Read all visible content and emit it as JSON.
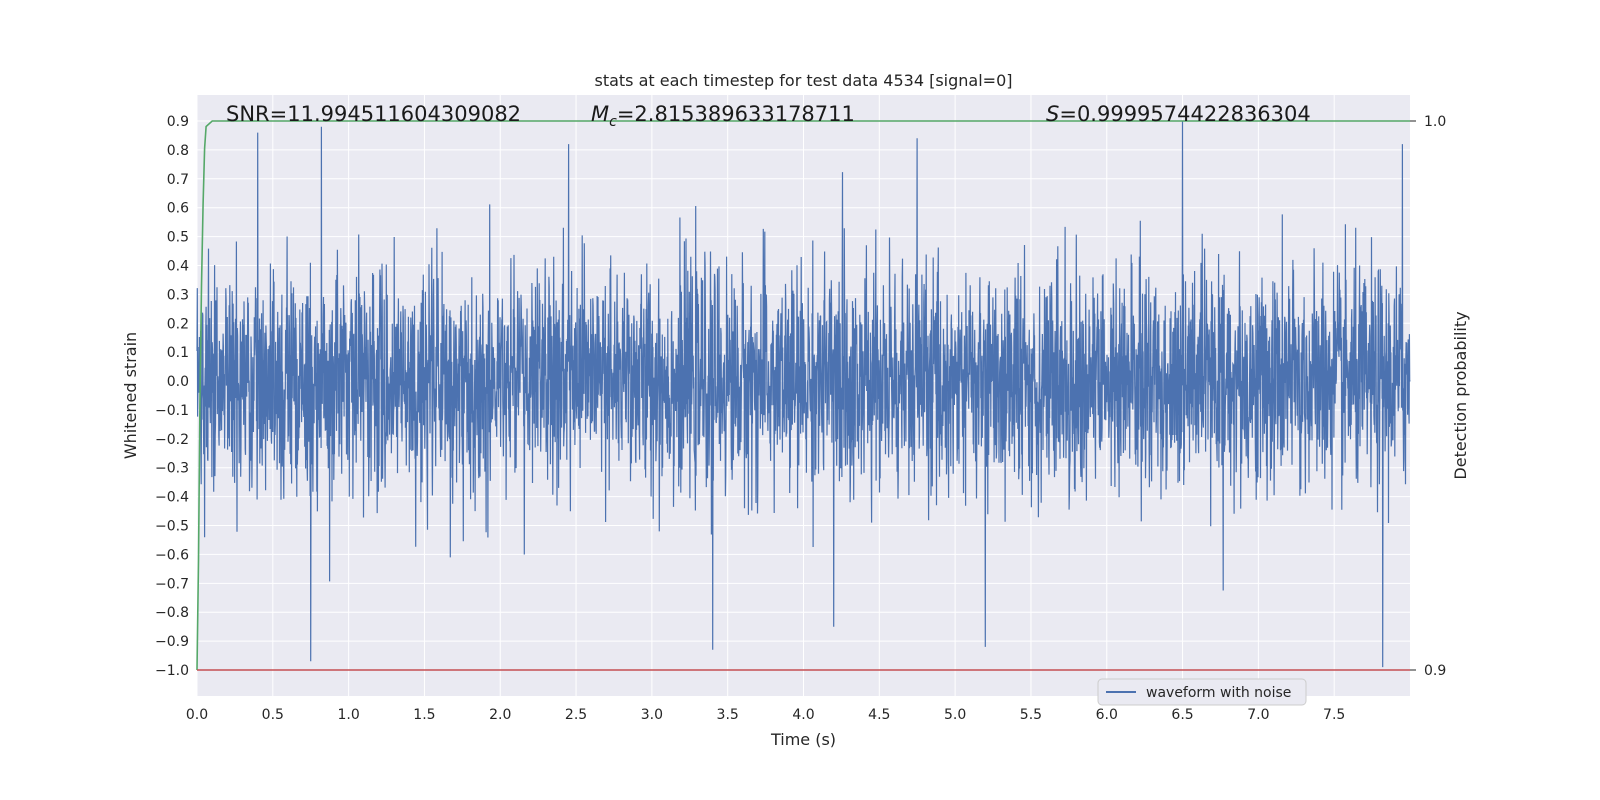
{
  "chart_data": {
    "type": "line",
    "title": "stats at each timestep for test data 4534 [signal=0]",
    "xlabel": "Time (s)",
    "ylabel": "Whitened strain",
    "y2label": "Detection probability",
    "xlim": [
      0.0,
      8.0
    ],
    "ylim": [
      -1.09,
      0.99
    ],
    "y2lim": [
      0.9,
      1.0
    ],
    "xticks": [
      "0.0",
      "0.5",
      "1.0",
      "1.5",
      "2.0",
      "2.5",
      "3.0",
      "3.5",
      "4.0",
      "4.5",
      "5.0",
      "5.5",
      "6.0",
      "6.5",
      "7.0",
      "7.5"
    ],
    "xtick_values": [
      0,
      0.5,
      1,
      1.5,
      2,
      2.5,
      3,
      3.5,
      4,
      4.5,
      5,
      5.5,
      6,
      6.5,
      7,
      7.5
    ],
    "yticks": [
      "0.9",
      "0.8",
      "0.7",
      "0.6",
      "0.5",
      "0.4",
      "0.3",
      "0.2",
      "0.1",
      "0.0",
      "−0.1",
      "−0.2",
      "−0.3",
      "−0.4",
      "−0.5",
      "−0.6",
      "−0.7",
      "−0.8",
      "−0.9",
      "−1.0"
    ],
    "ytick_values": [
      0.9,
      0.8,
      0.7,
      0.6,
      0.5,
      0.4,
      0.3,
      0.2,
      0.1,
      0.0,
      -0.1,
      -0.2,
      -0.3,
      -0.4,
      -0.5,
      -0.6,
      -0.7,
      -0.8,
      -0.9,
      -1.0
    ],
    "y2ticks": [
      "1.0",
      "0.9"
    ],
    "y2tick_values": [
      1.0,
      0.9
    ],
    "grid": true,
    "legend": {
      "placement": "lower-right",
      "entries": [
        "waveform with noise"
      ]
    },
    "annotations": {
      "snr": "SNR=11.994511604309082",
      "mc_symbol": "M",
      "mc_sub": "c",
      "mc_value": "=2.815389633178711",
      "s_symbol": "S",
      "s_value": "=0.9999574422836304"
    },
    "series": [
      {
        "name": "waveform with noise",
        "color": "#4c72b0",
        "description_values": "noise samples between about -1.0 and 0.9",
        "x_range": [
          0.0,
          8.0
        ],
        "typical_envelope": [
          -0.45,
          0.5
        ],
        "extremes": [
          {
            "x": 0.4,
            "y": 0.86
          },
          {
            "x": 0.75,
            "y": -0.97
          },
          {
            "x": 0.82,
            "y": 0.88
          },
          {
            "x": 2.45,
            "y": 0.82
          },
          {
            "x": 3.4,
            "y": -0.93
          },
          {
            "x": 4.2,
            "y": -0.85
          },
          {
            "x": 4.75,
            "y": 0.84
          },
          {
            "x": 5.2,
            "y": -0.92
          },
          {
            "x": 6.5,
            "y": 0.9
          },
          {
            "x": 7.82,
            "y": -0.99
          },
          {
            "x": 7.95,
            "y": 0.82
          }
        ]
      },
      {
        "name": "",
        "color": "#55a868",
        "axis": "y2",
        "x": [
          0.0,
          0.01,
          0.02,
          0.03,
          0.04,
          0.05,
          0.06,
          0.1,
          8.0
        ],
        "y": [
          0.9,
          0.92,
          0.95,
          0.97,
          0.985,
          0.995,
          0.999,
          1.0,
          1.0
        ]
      },
      {
        "name": "",
        "color": "#c44e52",
        "axis": "y2",
        "x": [
          0.0,
          8.0
        ],
        "y": [
          0.9,
          0.9
        ]
      }
    ]
  }
}
